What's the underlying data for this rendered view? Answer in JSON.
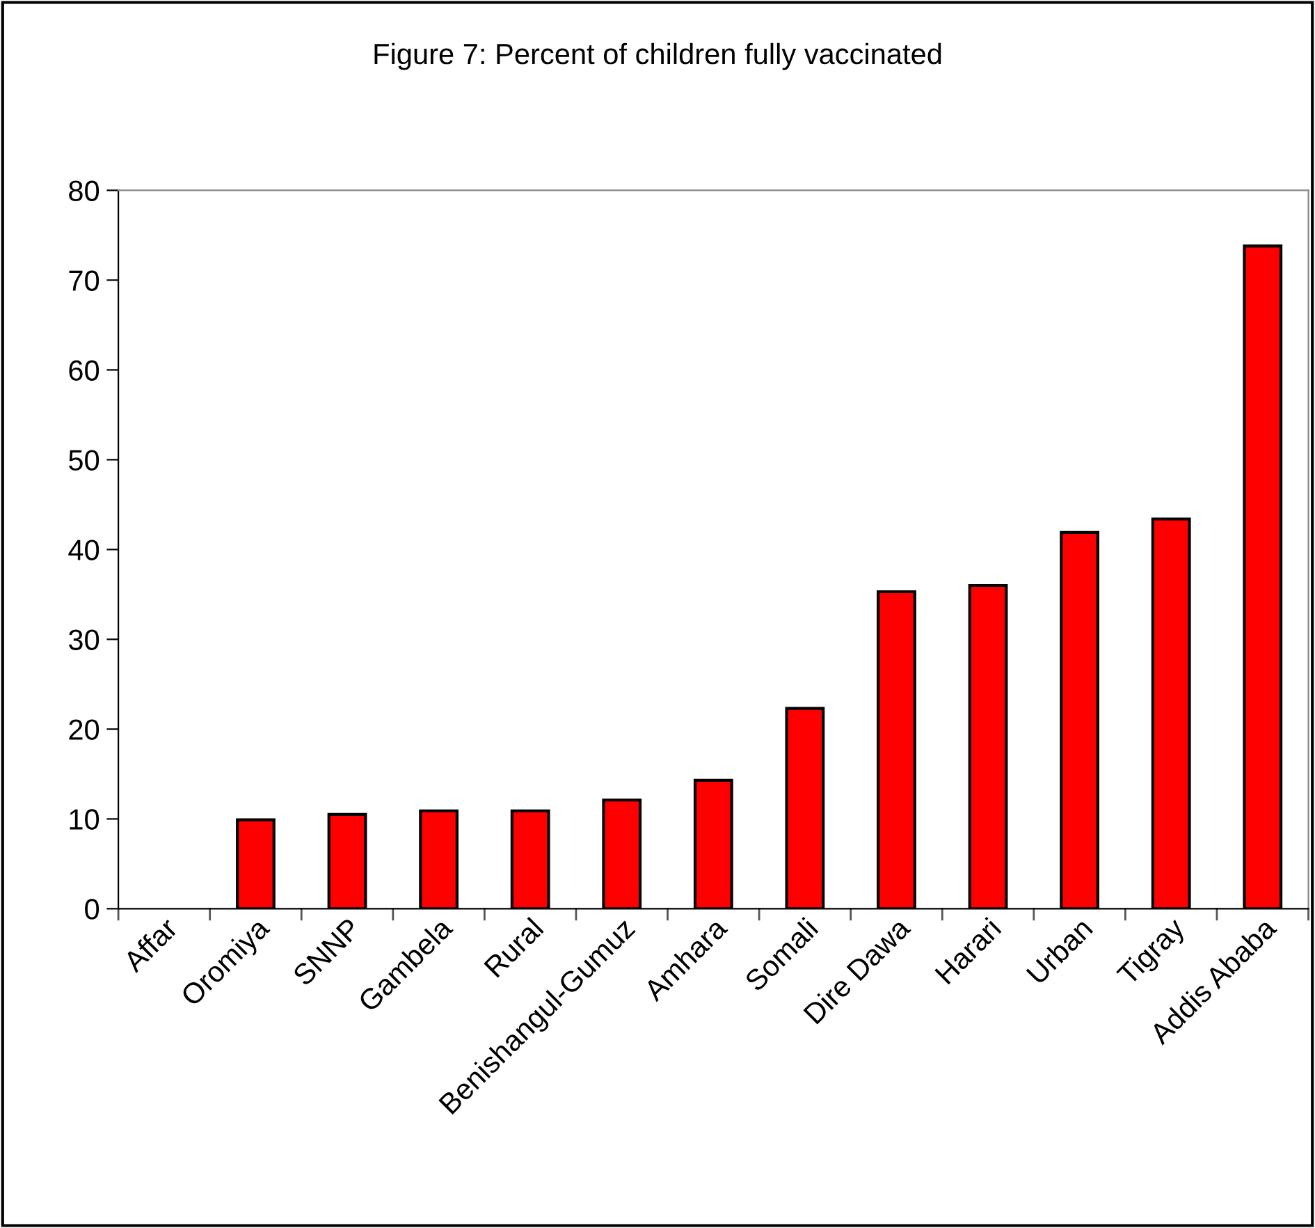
{
  "chart_data": {
    "type": "bar",
    "title": "Figure 7: Percent of children fully vaccinated",
    "categories": [
      "Affar",
      "Oromiya",
      "SNNP",
      "Gambela",
      "Rural",
      "Benishangul-Gumuz",
      "Amhara",
      "Somali",
      "Dire Dawa",
      "Harari",
      "Urban",
      "Tigray",
      "Addis Ababa"
    ],
    "values": [
      null,
      9.9,
      10.5,
      10.9,
      10.9,
      12.1,
      14.3,
      22.3,
      35.3,
      36.0,
      41.9,
      43.4,
      73.8
    ],
    "color": "#ff0000",
    "ylim": [
      0,
      80
    ],
    "yticks": [
      0,
      10,
      20,
      30,
      40,
      50,
      60,
      70,
      80
    ],
    "grid": false,
    "legend": false
  }
}
